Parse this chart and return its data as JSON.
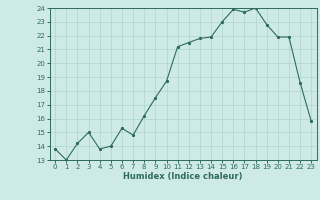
{
  "x": [
    0,
    1,
    2,
    3,
    4,
    5,
    6,
    7,
    8,
    9,
    10,
    11,
    12,
    13,
    14,
    15,
    16,
    17,
    18,
    19,
    20,
    21,
    22,
    23
  ],
  "y": [
    13.8,
    13.0,
    14.2,
    15.0,
    13.8,
    14.0,
    15.3,
    14.8,
    16.2,
    17.5,
    18.7,
    21.2,
    21.5,
    21.8,
    21.9,
    23.0,
    23.9,
    23.7,
    24.0,
    22.8,
    21.9,
    21.9,
    18.6,
    15.8
  ],
  "xlabel": "Humidex (Indice chaleur)",
  "line_color": "#2e6b5e",
  "bg_color": "#ceeae6",
  "grid_color": "#b0d4ce",
  "ylim": [
    13,
    24
  ],
  "xlim": [
    -0.5,
    23.5
  ],
  "yticks": [
    13,
    14,
    15,
    16,
    17,
    18,
    19,
    20,
    21,
    22,
    23,
    24
  ],
  "xticks": [
    0,
    1,
    2,
    3,
    4,
    5,
    6,
    7,
    8,
    9,
    10,
    11,
    12,
    13,
    14,
    15,
    16,
    17,
    18,
    19,
    20,
    21,
    22,
    23
  ],
  "tick_fontsize": 5.0,
  "xlabel_fontsize": 6.0
}
